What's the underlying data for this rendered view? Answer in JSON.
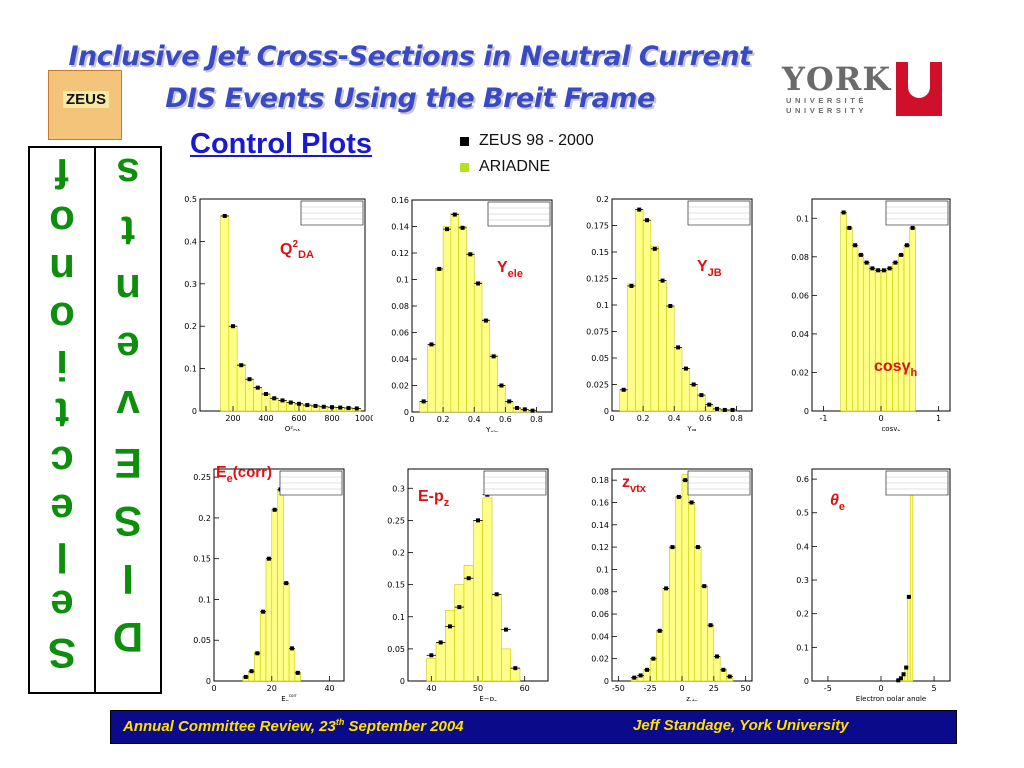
{
  "title_line1": "Inclusive Jet Cross-Sections in Neutral Current",
  "title_line2": "DIS Events Using the Breit Frame",
  "zeus_logo_text": "ZEUS",
  "york_logo": {
    "word": "YORK",
    "line1": "UNIVERSITÉ",
    "line2": "UNIVERSITY"
  },
  "heading": "Control Plots",
  "legend": [
    {
      "label": "ZEUS 98 - 2000",
      "color": "#000000"
    },
    {
      "label": "ARIADNE",
      "color": "#b8e020"
    }
  ],
  "vertical_left": [
    "f",
    "o",
    "n",
    "o",
    "i",
    "t",
    "c",
    "e",
    "l",
    "e",
    "S"
  ],
  "vertical_right": [
    "s",
    "t",
    "n",
    "e",
    "v",
    "E",
    "S",
    "I",
    "D"
  ],
  "footer": {
    "left_main": "Annual Committee Review, 23",
    "left_sup": "th",
    "left_tail": " September 2004",
    "right": "Jeff Standage, York University"
  },
  "colors": {
    "title": "#3a49c4",
    "hist_fill": "#ffff88",
    "hist_edge": "#c8c800",
    "footer_bg": "#0a0a8a",
    "footer_text": "#ffe000",
    "label_red": "#dd1111",
    "vertical_text": "#0d8f0d"
  },
  "chart_data": [
    {
      "type": "bar",
      "id": "q2",
      "label_main": "Q",
      "label_sup": "2",
      "label_sub": "DA",
      "label_italic": false,
      "xlabel": "Q²",
      "xlabel_sub": "DA",
      "xlim": [
        0,
        1000
      ],
      "ylim": [
        0,
        0.5
      ],
      "xticks": [
        200,
        400,
        600,
        800,
        1000
      ],
      "yticks": [
        0,
        0.1,
        0.2,
        0.3,
        0.4,
        0.5
      ],
      "bins": [
        [
          125,
          175
        ],
        [
          175,
          225
        ],
        [
          225,
          275
        ],
        [
          275,
          325
        ],
        [
          325,
          375
        ],
        [
          375,
          425
        ],
        [
          425,
          475
        ],
        [
          475,
          525
        ],
        [
          525,
          575
        ],
        [
          575,
          625
        ],
        [
          625,
          675
        ],
        [
          675,
          725
        ],
        [
          725,
          775
        ],
        [
          775,
          825
        ],
        [
          825,
          875
        ],
        [
          875,
          925
        ],
        [
          925,
          975
        ]
      ],
      "mc": [
        0.46,
        0.2,
        0.11,
        0.075,
        0.055,
        0.04,
        0.03,
        0.025,
        0.02,
        0.017,
        0.014,
        0.012,
        0.01,
        0.009,
        0.008,
        0.007,
        0.006
      ],
      "data": [
        0.46,
        0.2,
        0.108,
        0.075,
        0.055,
        0.04,
        0.03,
        0.025,
        0.02,
        0.017,
        0.014,
        0.012,
        0.01,
        0.009,
        0.008,
        0.007,
        0.006
      ]
    },
    {
      "type": "bar",
      "id": "yele",
      "label_main": "Y",
      "label_sup": "",
      "label_sub": "ele",
      "label_italic": false,
      "xlabel": "Y",
      "xlabel_sub": "ele",
      "xlim": [
        0,
        0.9
      ],
      "ylim": [
        0,
        0.16
      ],
      "xticks": [
        0,
        0.2,
        0.4,
        0.6,
        0.8
      ],
      "yticks": [
        0,
        0.02,
        0.04,
        0.06,
        0.08,
        0.1,
        0.12,
        0.14,
        0.16
      ],
      "bins": [
        [
          0.05,
          0.1
        ],
        [
          0.1,
          0.15
        ],
        [
          0.15,
          0.2
        ],
        [
          0.2,
          0.25
        ],
        [
          0.25,
          0.3
        ],
        [
          0.3,
          0.35
        ],
        [
          0.35,
          0.4
        ],
        [
          0.4,
          0.45
        ],
        [
          0.45,
          0.5
        ],
        [
          0.5,
          0.55
        ],
        [
          0.55,
          0.6
        ],
        [
          0.6,
          0.65
        ],
        [
          0.65,
          0.7
        ],
        [
          0.7,
          0.75
        ],
        [
          0.75,
          0.8
        ]
      ],
      "mc": [
        0.008,
        0.05,
        0.107,
        0.14,
        0.15,
        0.14,
        0.12,
        0.098,
        0.07,
        0.043,
        0.02,
        0.008,
        0.003,
        0.002,
        0.001
      ],
      "data": [
        0.008,
        0.051,
        0.108,
        0.138,
        0.149,
        0.139,
        0.119,
        0.097,
        0.069,
        0.042,
        0.02,
        0.008,
        0.003,
        0.002,
        0.001
      ]
    },
    {
      "type": "bar",
      "id": "yjb",
      "label_main": "Y",
      "label_sup": "",
      "label_sub": "JB",
      "label_italic": false,
      "xlabel": "Y",
      "xlabel_sub": "JB",
      "xlim": [
        0,
        0.9
      ],
      "ylim": [
        0,
        0.2
      ],
      "xticks": [
        0,
        0.2,
        0.4,
        0.6,
        0.8
      ],
      "yticks": [
        0,
        0.025,
        0.05,
        0.075,
        0.1,
        0.125,
        0.15,
        0.175,
        0.2
      ],
      "bins": [
        [
          0.05,
          0.1
        ],
        [
          0.1,
          0.15
        ],
        [
          0.15,
          0.2
        ],
        [
          0.2,
          0.25
        ],
        [
          0.25,
          0.3
        ],
        [
          0.3,
          0.35
        ],
        [
          0.35,
          0.4
        ],
        [
          0.4,
          0.45
        ],
        [
          0.45,
          0.5
        ],
        [
          0.5,
          0.55
        ],
        [
          0.55,
          0.6
        ],
        [
          0.6,
          0.65
        ],
        [
          0.65,
          0.7
        ],
        [
          0.7,
          0.75
        ],
        [
          0.75,
          0.8
        ]
      ],
      "mc": [
        0.02,
        0.12,
        0.19,
        0.18,
        0.155,
        0.123,
        0.099,
        0.06,
        0.04,
        0.025,
        0.015,
        0.006,
        0.002,
        0.001,
        0.001
      ],
      "data": [
        0.02,
        0.118,
        0.19,
        0.18,
        0.153,
        0.123,
        0.099,
        0.06,
        0.04,
        0.025,
        0.015,
        0.006,
        0.002,
        0.001,
        0.001
      ]
    },
    {
      "type": "bar",
      "id": "cosg",
      "label_main": "cosγ",
      "label_sup": "",
      "label_sub": "h",
      "label_italic": false,
      "xlabel": "cosγ",
      "xlabel_sub": "h",
      "xlim": [
        -1.2,
        1.2
      ],
      "ylim": [
        0,
        0.11
      ],
      "xticks": [
        -1,
        0,
        1
      ],
      "yticks": [
        0,
        0.02,
        0.04,
        0.06,
        0.08,
        0.1
      ],
      "bins": [
        [
          -0.7,
          -0.6
        ],
        [
          -0.6,
          -0.5
        ],
        [
          -0.5,
          -0.4
        ],
        [
          -0.4,
          -0.3
        ],
        [
          -0.3,
          -0.2
        ],
        [
          -0.2,
          -0.1
        ],
        [
          -0.1,
          0.0
        ],
        [
          0.0,
          0.1
        ],
        [
          0.1,
          0.2
        ],
        [
          0.2,
          0.3
        ],
        [
          0.3,
          0.4
        ],
        [
          0.4,
          0.5
        ],
        [
          0.5,
          0.6
        ]
      ],
      "mc": [
        0.103,
        0.095,
        0.086,
        0.081,
        0.077,
        0.074,
        0.073,
        0.073,
        0.074,
        0.077,
        0.081,
        0.086,
        0.095
      ],
      "data": [
        0.103,
        0.095,
        0.086,
        0.081,
        0.077,
        0.074,
        0.073,
        0.073,
        0.074,
        0.077,
        0.081,
        0.086,
        0.095
      ]
    },
    {
      "type": "bar",
      "id": "ee",
      "label_main": "E",
      "label_sup": "",
      "label_sub": "e",
      "label_tail": "(corr)",
      "label_italic": false,
      "xlabel": "E",
      "xlabel_sub": "e",
      "xlabel_sup": "corr",
      "xlim": [
        0,
        45
      ],
      "ylim": [
        0,
        0.26
      ],
      "xticks": [
        0,
        20,
        40
      ],
      "yticks": [
        0,
        0.05,
        0.1,
        0.15,
        0.2,
        0.25
      ],
      "bins": [
        [
          10,
          12
        ],
        [
          12,
          14
        ],
        [
          14,
          16
        ],
        [
          16,
          18
        ],
        [
          18,
          20
        ],
        [
          20,
          22
        ],
        [
          22,
          24
        ],
        [
          24,
          26
        ],
        [
          26,
          28
        ],
        [
          28,
          30
        ]
      ],
      "mc": [
        0.005,
        0.012,
        0.035,
        0.085,
        0.15,
        0.21,
        0.235,
        0.12,
        0.04,
        0.01
      ],
      "data": [
        0.005,
        0.012,
        0.034,
        0.085,
        0.15,
        0.21,
        0.235,
        0.12,
        0.04,
        0.01
      ]
    },
    {
      "type": "bar",
      "id": "epz",
      "label_main": "E-p",
      "label_sup": "",
      "label_sub": "z",
      "label_italic": false,
      "xlabel": "E−p",
      "xlabel_sub": "z",
      "xlim": [
        35,
        65
      ],
      "ylim": [
        0,
        0.33
      ],
      "xticks": [
        40,
        50,
        60
      ],
      "yticks": [
        0,
        0.05,
        0.1,
        0.15,
        0.2,
        0.25,
        0.3
      ],
      "bins": [
        [
          39,
          41
        ],
        [
          41,
          43
        ],
        [
          43,
          45
        ],
        [
          45,
          47
        ],
        [
          47,
          49
        ],
        [
          49,
          51
        ],
        [
          51,
          53
        ],
        [
          53,
          55
        ],
        [
          55,
          57
        ],
        [
          57,
          59
        ]
      ],
      "mc": [
        0.035,
        0.06,
        0.11,
        0.15,
        0.18,
        0.25,
        0.285,
        0.135,
        0.05,
        0.02
      ],
      "data": [
        0.04,
        0.06,
        0.085,
        0.115,
        0.16,
        0.25,
        0.29,
        0.135,
        0.08,
        0.02
      ]
    },
    {
      "type": "bar",
      "id": "zvtx",
      "label_main": "z",
      "label_sup": "",
      "label_sub": "vtx",
      "label_italic": false,
      "xlabel": "z",
      "xlabel_sub": "vtx",
      "xlim": [
        -55,
        55
      ],
      "ylim": [
        0,
        0.19
      ],
      "xticks": [
        -50,
        -25,
        0,
        25,
        50
      ],
      "yticks": [
        0,
        0.02,
        0.04,
        0.06,
        0.08,
        0.1,
        0.12,
        0.14,
        0.16,
        0.18
      ],
      "bins": [
        [
          -40,
          -35
        ],
        [
          -35,
          -30
        ],
        [
          -30,
          -25
        ],
        [
          -25,
          -20
        ],
        [
          -20,
          -15
        ],
        [
          -15,
          -10
        ],
        [
          -10,
          -5
        ],
        [
          -5,
          0
        ],
        [
          0,
          5
        ],
        [
          5,
          10
        ],
        [
          10,
          15
        ],
        [
          15,
          20
        ],
        [
          20,
          25
        ],
        [
          25,
          30
        ],
        [
          30,
          35
        ],
        [
          35,
          40
        ]
      ],
      "mc": [
        0.003,
        0.005,
        0.01,
        0.02,
        0.045,
        0.083,
        0.12,
        0.165,
        0.185,
        0.16,
        0.12,
        0.085,
        0.05,
        0.022,
        0.01,
        0.004
      ],
      "data": [
        0.003,
        0.005,
        0.01,
        0.02,
        0.045,
        0.083,
        0.12,
        0.165,
        0.18,
        0.16,
        0.12,
        0.085,
        0.05,
        0.022,
        0.01,
        0.004
      ]
    },
    {
      "type": "bar",
      "id": "theta",
      "label_main": "θ",
      "label_sup": "",
      "label_sub": "e",
      "label_italic": true,
      "xlabel": "Electron polar angle",
      "xlabel_sub": "",
      "xlim": [
        -6.5,
        6.5
      ],
      "ylim": [
        0,
        0.63
      ],
      "xticks": [
        -5,
        0,
        5
      ],
      "yticks": [
        0,
        0.1,
        0.2,
        0.3,
        0.4,
        0.5,
        0.6
      ],
      "bins": [
        [
          1.5,
          1.75
        ],
        [
          1.75,
          2.0
        ],
        [
          2.0,
          2.25
        ],
        [
          2.25,
          2.5
        ],
        [
          2.5,
          2.75
        ],
        [
          2.75,
          3.0
        ]
      ],
      "mc": [
        0.002,
        0.008,
        0.02,
        0.04,
        0.25,
        0.6
      ],
      "data": [
        0.002,
        0.008,
        0.02,
        0.04,
        0.25,
        0.6
      ]
    }
  ]
}
